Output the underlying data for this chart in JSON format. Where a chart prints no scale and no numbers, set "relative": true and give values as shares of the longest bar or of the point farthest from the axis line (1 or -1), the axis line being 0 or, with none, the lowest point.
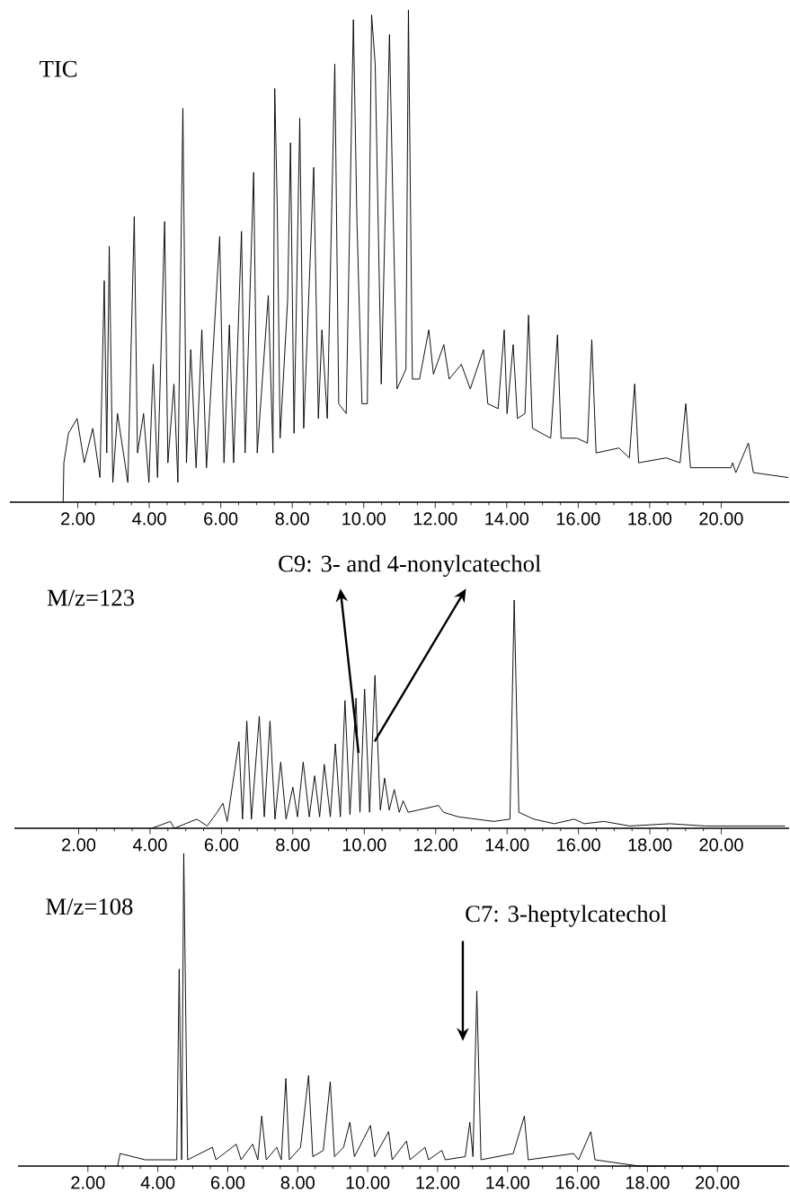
{
  "chart_data": [
    {
      "type": "line",
      "relative": true,
      "title": "TIC",
      "color": "#000000",
      "xlim": [
        0.1,
        21.9
      ],
      "xticks": [
        {
          "value": 2,
          "label": "2.00"
        },
        {
          "value": 4,
          "label": "4.00"
        },
        {
          "value": 6,
          "label": "6.00"
        },
        {
          "value": 8,
          "label": "8.00"
        },
        {
          "value": 10,
          "label": "10.00"
        },
        {
          "value": 12,
          "label": "12.00"
        },
        {
          "value": 14,
          "label": "14.00"
        },
        {
          "value": 16,
          "label": "16.00"
        },
        {
          "value": 18,
          "label": "18.00"
        },
        {
          "value": 20,
          "label": "20.00"
        }
      ],
      "x": [
        1.59,
        1.61,
        1.74,
        1.98,
        2.18,
        2.42,
        2.62,
        2.74,
        2.81,
        2.88,
        2.98,
        3.11,
        3.4,
        3.58,
        3.67,
        3.84,
        3.99,
        4.11,
        4.23,
        4.43,
        4.52,
        4.69,
        4.8,
        4.94,
        5.04,
        5.16,
        5.31,
        5.47,
        5.6,
        5.85,
        5.97,
        6.09,
        6.24,
        6.36,
        6.58,
        6.68,
        6.92,
        7.02,
        7.33,
        7.46,
        7.51,
        7.58,
        7.66,
        7.87,
        7.95,
        8.05,
        8.21,
        8.32,
        8.6,
        8.73,
        8.83,
        8.98,
        9.19,
        9.3,
        9.51,
        9.71,
        9.81,
        9.95,
        10.1,
        10.22,
        10.32,
        10.49,
        10.72,
        10.81,
        10.93,
        11.18,
        11.25,
        11.36,
        11.56,
        11.82,
        11.95,
        12.24,
        12.39,
        12.73,
        12.98,
        13.35,
        13.47,
        13.76,
        13.93,
        14.01,
        14.18,
        14.3,
        14.51,
        14.61,
        14.72,
        15.23,
        15.42,
        15.52,
        15.96,
        16.26,
        16.38,
        16.5,
        17.14,
        17.43,
        17.58,
        17.69,
        18.46,
        18.85,
        19.01,
        19.14,
        20.27,
        20.32,
        20.41,
        20.76,
        20.9,
        21.88
      ],
      "values": [
        0,
        0.08,
        0.14,
        0.17,
        0.08,
        0.15,
        0.05,
        0.45,
        0.1,
        0.52,
        0.04,
        0.18,
        0.04,
        0.58,
        0.1,
        0.18,
        0.04,
        0.28,
        0.05,
        0.57,
        0.08,
        0.24,
        0.04,
        0.8,
        0.08,
        0.31,
        0.07,
        0.35,
        0.07,
        0.39,
        0.54,
        0.08,
        0.36,
        0.08,
        0.55,
        0.1,
        0.67,
        0.1,
        0.42,
        0.1,
        0.84,
        0.6,
        0.13,
        0.41,
        0.73,
        0.14,
        0.78,
        0.15,
        0.68,
        0.17,
        0.35,
        0.17,
        0.89,
        0.2,
        0.18,
        0.98,
        0.57,
        0.2,
        0.2,
        0.99,
        0.89,
        0.24,
        0.95,
        0.63,
        0.23,
        0.27,
        1.0,
        0.25,
        0.25,
        0.35,
        0.26,
        0.32,
        0.25,
        0.28,
        0.23,
        0.31,
        0.2,
        0.19,
        0.35,
        0.18,
        0.32,
        0.17,
        0.18,
        0.38,
        0.15,
        0.13,
        0.34,
        0.13,
        0.13,
        0.12,
        0.33,
        0.1,
        0.11,
        0.09,
        0.24,
        0.08,
        0.09,
        0.08,
        0.2,
        0.07,
        0.07,
        0.08,
        0.06,
        0.12,
        0.06,
        0.05
      ]
    },
    {
      "type": "line",
      "relative": true,
      "title": "M/z=123",
      "color": "#000000",
      "xlim": [
        0.2,
        21.9
      ],
      "xticks": [
        {
          "value": 2,
          "label": "2.00"
        },
        {
          "value": 4,
          "label": "4.00"
        },
        {
          "value": 6,
          "label": "6.00"
        },
        {
          "value": 8,
          "label": "8.00"
        },
        {
          "value": 10,
          "label": "10.00"
        },
        {
          "value": 12,
          "label": "12.00"
        },
        {
          "value": 14,
          "label": "14.00"
        },
        {
          "value": 16,
          "label": "16.00"
        },
        {
          "value": 18,
          "label": "18.00"
        },
        {
          "value": 20,
          "label": "20.00"
        }
      ],
      "annotations": [
        "C9: 3- and 4-nonylcatechol"
      ],
      "x": [
        4.05,
        4.57,
        4.68,
        5.31,
        5.6,
        5.88,
        6.04,
        6.16,
        6.49,
        6.59,
        6.71,
        6.84,
        7.06,
        7.2,
        7.36,
        7.5,
        7.66,
        7.81,
        8.0,
        8.13,
        8.29,
        8.46,
        8.61,
        8.75,
        8.88,
        9.05,
        9.19,
        9.33,
        9.46,
        9.6,
        9.77,
        9.88,
        10.01,
        10.15,
        10.3,
        10.45,
        10.57,
        10.7,
        10.84,
        10.98,
        11.09,
        11.23,
        12.08,
        12.22,
        12.64,
        13.63,
        14.08,
        14.2,
        14.33,
        14.75,
        15.32,
        15.88,
        16.16,
        16.72,
        17.43,
        18.56,
        19.54,
        21.79
      ],
      "values": [
        0,
        0.03,
        0,
        0.04,
        0.01,
        0.07,
        0.11,
        0.03,
        0.38,
        0.04,
        0.47,
        0.04,
        0.49,
        0.05,
        0.47,
        0.04,
        0.29,
        0.04,
        0.18,
        0.05,
        0.29,
        0.05,
        0.23,
        0.05,
        0.28,
        0.05,
        0.37,
        0.05,
        0.56,
        0.06,
        0.57,
        0.07,
        0.61,
        0.07,
        0.67,
        0.08,
        0.22,
        0.08,
        0.17,
        0.07,
        0.12,
        0.07,
        0.1,
        0.07,
        0.05,
        0.03,
        0.04,
        1.0,
        0.07,
        0.04,
        0.02,
        0.04,
        0.02,
        0.03,
        0.01,
        0.02,
        0.01,
        0.01
      ]
    },
    {
      "type": "line",
      "relative": true,
      "title": "M/z=108",
      "color": "#000000",
      "xlim": [
        0.0,
        22.05
      ],
      "xticks": [
        {
          "value": 2,
          "label": "2.00"
        },
        {
          "value": 4,
          "label": "4.00"
        },
        {
          "value": 6,
          "label": "6.00"
        },
        {
          "value": 8,
          "label": "8.00"
        },
        {
          "value": 10,
          "label": "10.00"
        },
        {
          "value": 12,
          "label": "12.00"
        },
        {
          "value": 14,
          "label": "14.00"
        },
        {
          "value": 16,
          "label": "16.00"
        },
        {
          "value": 18,
          "label": "18.00"
        },
        {
          "value": 20,
          "label": "20.00"
        }
      ],
      "annotations": [
        "C7: 3-heptylcatechol"
      ],
      "x": [
        2.85,
        2.92,
        3.64,
        4.54,
        4.61,
        4.68,
        4.74,
        4.85,
        5.56,
        5.66,
        6.24,
        6.38,
        6.71,
        6.86,
        6.97,
        7.1,
        7.4,
        7.53,
        7.66,
        7.76,
        8.08,
        8.31,
        8.43,
        8.73,
        8.93,
        9.05,
        9.31,
        9.49,
        9.62,
        10.08,
        10.2,
        10.6,
        10.7,
        11.11,
        11.21,
        11.64,
        11.74,
        12.12,
        12.22,
        12.79,
        12.92,
        13.01,
        13.12,
        13.24,
        14.16,
        14.48,
        14.59,
        15.89,
        16.03,
        16.38,
        16.5,
        17.76,
        21.94
      ],
      "values": [
        0,
        0.04,
        0.02,
        0.02,
        0.63,
        0.02,
        1.0,
        0.02,
        0.06,
        0.02,
        0.07,
        0.02,
        0.07,
        0.02,
        0.16,
        0.02,
        0.06,
        0.02,
        0.28,
        0.02,
        0.06,
        0.29,
        0.03,
        0.05,
        0.27,
        0.03,
        0.06,
        0.14,
        0.03,
        0.13,
        0.03,
        0.11,
        0.02,
        0.08,
        0.02,
        0.06,
        0.02,
        0.05,
        0.02,
        0.03,
        0.14,
        0.03,
        0.56,
        0.02,
        0.04,
        0.16,
        0.02,
        0.04,
        0.02,
        0.11,
        0.02,
        0,
        0
      ]
    }
  ]
}
